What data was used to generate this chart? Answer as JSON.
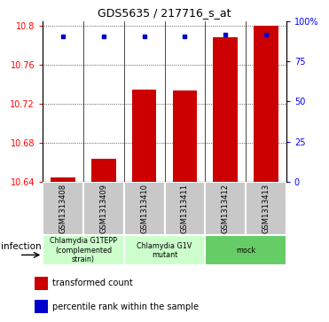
{
  "title": "GDS5635 / 217716_s_at",
  "samples": [
    "GSM1313408",
    "GSM1313409",
    "GSM1313410",
    "GSM1313411",
    "GSM1313412",
    "GSM1313413"
  ],
  "bar_values": [
    10.645,
    10.664,
    10.735,
    10.734,
    10.788,
    10.8
  ],
  "percentile_values": [
    10.789,
    10.789,
    10.789,
    10.789,
    10.791,
    10.791
  ],
  "bar_color": "#cc0000",
  "dot_color": "#0000cc",
  "ylim": [
    10.64,
    10.805
  ],
  "yticks": [
    10.64,
    10.68,
    10.72,
    10.76,
    10.8
  ],
  "ytick_labels": [
    "10.64",
    "10.68",
    "10.72",
    "10.76",
    "10.8"
  ],
  "right_yticks": [
    0,
    25,
    50,
    75,
    100
  ],
  "right_ytick_labels": [
    "0",
    "25",
    "50",
    "75",
    "100%"
  ],
  "group_ranges": [
    [
      0,
      1
    ],
    [
      2,
      3
    ],
    [
      4,
      5
    ]
  ],
  "group_labels": [
    "Chlamydia G1TEPP\n(complemented\nstrain)",
    "Chlamydia G1V\nmutant",
    "mock"
  ],
  "group_colors": [
    "#ccffcc",
    "#ccffcc",
    "#66cc66"
  ],
  "factor_label": "infection",
  "legend_items": [
    {
      "color": "#cc0000",
      "label": "transformed count"
    },
    {
      "color": "#0000cc",
      "label": "percentile rank within the sample"
    }
  ],
  "bar_width": 0.6,
  "gray": "#c8c8c8"
}
